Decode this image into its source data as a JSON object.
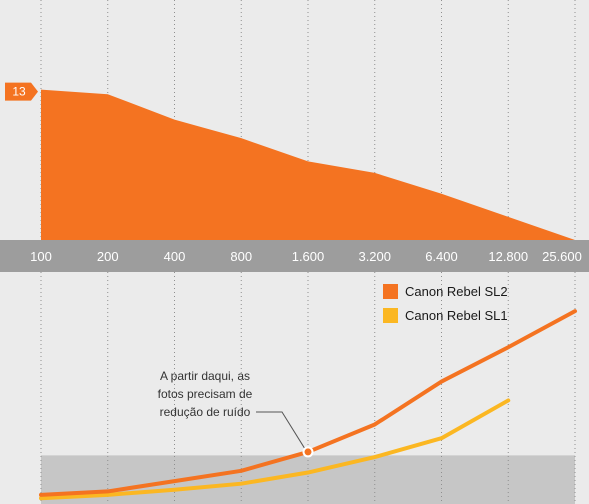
{
  "chart_data": [
    {
      "type": "area",
      "x": [
        "100",
        "200",
        "400",
        "800",
        "1.600",
        "3.200",
        "6.400",
        "12.800",
        "25.600"
      ],
      "series": [
        {
          "values": [
            13,
            12.6,
            10.4,
            8.8,
            6.8,
            5.8,
            4.0,
            2.0,
            0
          ]
        }
      ],
      "value_labels": [
        {
          "x": "100",
          "text": "13"
        }
      ],
      "ylim": [
        0,
        14
      ],
      "grid": "vertical dotted",
      "colors": {
        "area": "#f47321",
        "axis_band": "#9d9d9d",
        "value_badge": "#f47321"
      }
    },
    {
      "type": "line",
      "x": [
        "100",
        "200",
        "400",
        "800",
        "1.600",
        "3.200",
        "6.400",
        "12.800",
        "25.600"
      ],
      "series": [
        {
          "name": "Canon Rebel SL2",
          "color": "#f47321",
          "values": [
            0.6,
            1.0,
            2.2,
            3.4,
            5.6,
            8.8,
            13.8,
            17.8,
            22.0
          ]
        },
        {
          "name": "Canon Rebel SL1",
          "color": "#fbb722",
          "values": [
            0.2,
            0.6,
            1.2,
            1.9,
            3.2,
            5.0,
            7.2,
            11.6,
            null
          ]
        }
      ],
      "ylim": [
        0,
        24
      ],
      "shaded_band": {
        "from": 0,
        "to": 5.2,
        "color": "#c6c6c6"
      },
      "annotation": {
        "x": "1.600",
        "series": "Canon Rebel SL2",
        "lines": [
          "A partir daqui, as",
          "fotos precisam de",
          "redução de ruído"
        ]
      },
      "legend_placement": "top-right",
      "grid": "vertical dotted"
    }
  ]
}
